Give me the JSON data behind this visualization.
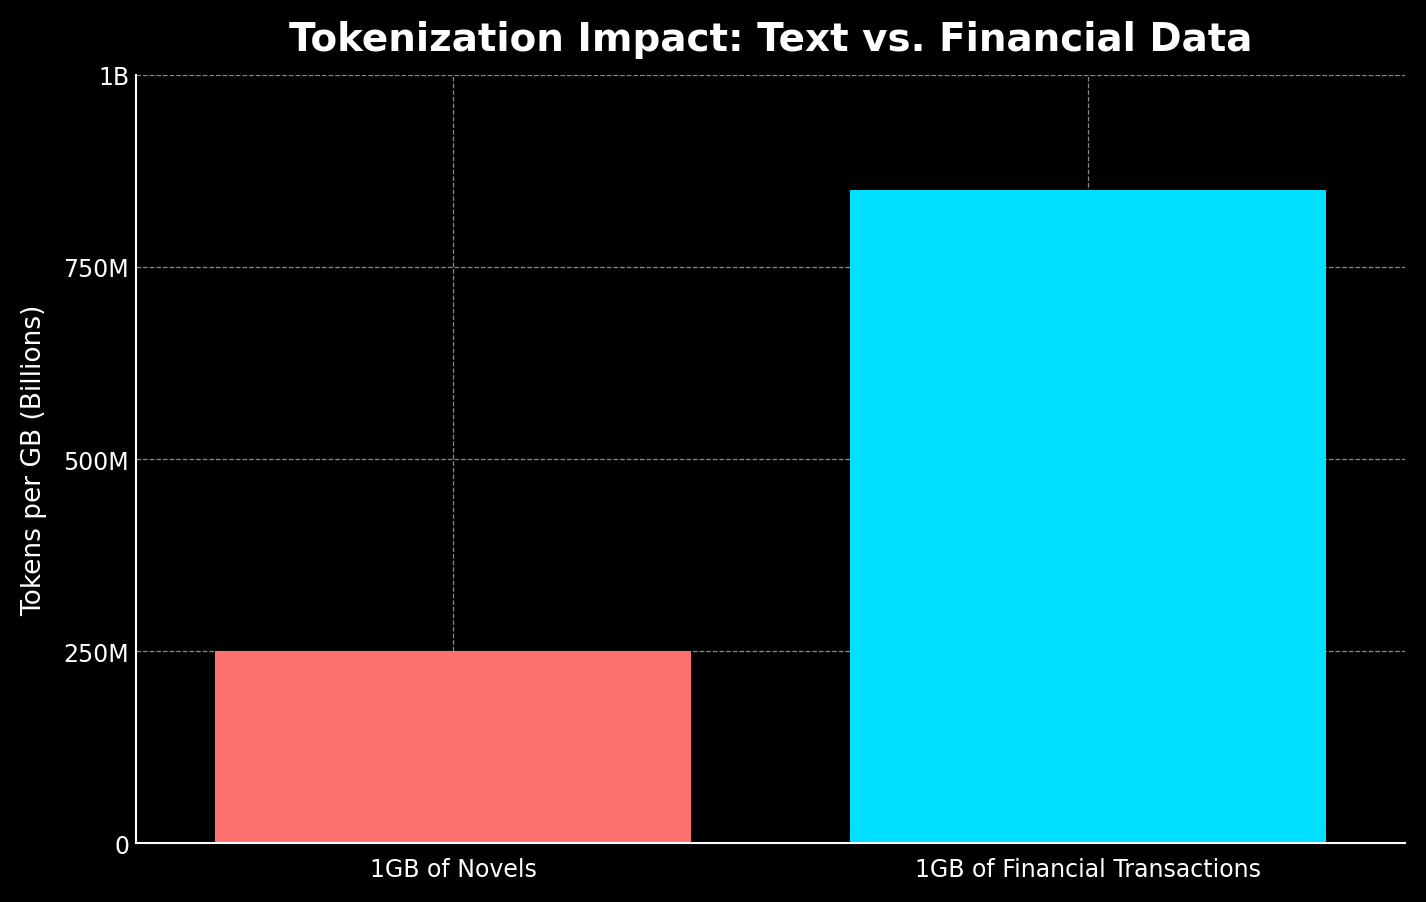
{
  "title": "Tokenization Impact: Text vs. Financial Data",
  "ylabel": "Tokens per GB (Billions)",
  "categories": [
    "1GB of Novels",
    "1GB of Financial Transactions"
  ],
  "values": [
    250000000,
    850000000
  ],
  "bar_colors": [
    "#FF7070",
    "#00DFFF"
  ],
  "background_color": "#000000",
  "text_color": "#FFFFFF",
  "grid_color": "#888888",
  "ylim": [
    0,
    1000000000
  ],
  "yticks": [
    0,
    250000000,
    500000000,
    750000000,
    1000000000
  ],
  "ytick_labels": [
    "0",
    "250M",
    "500M",
    "750M",
    "1B"
  ],
  "title_fontsize": 28,
  "axis_label_fontsize": 19,
  "tick_fontsize": 17,
  "bar_width": 0.75,
  "xlim": [
    -0.5,
    1.5
  ]
}
